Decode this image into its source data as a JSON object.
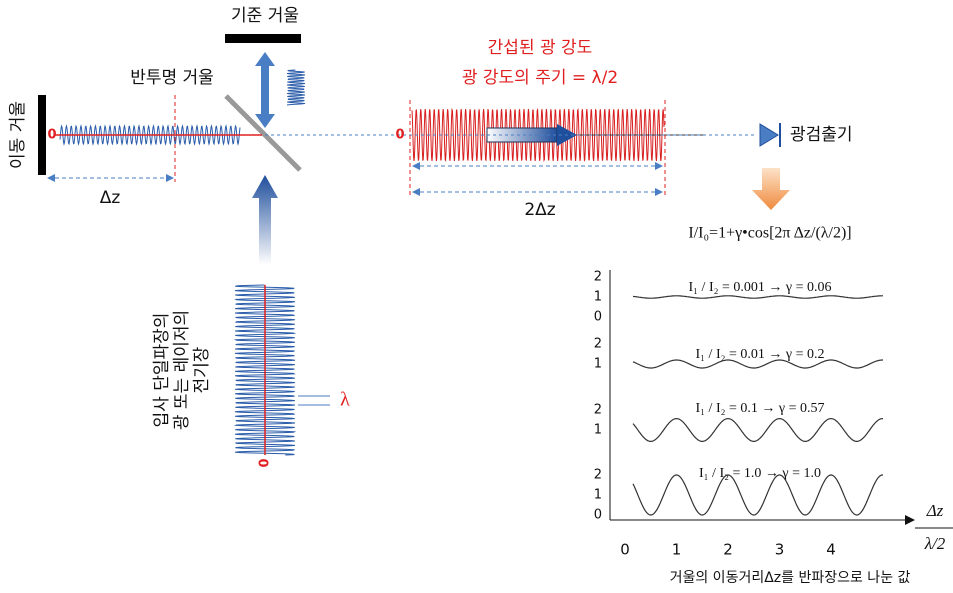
{
  "labels": {
    "reference_mirror": "기준 거울",
    "beam_splitter": "반투명 거울",
    "moving_mirror": "이동 거울",
    "delta_z": "Δz",
    "interference_title": "간섭된 광 강도",
    "period": "광 강도의 주기 = λ/2",
    "origin_left": "0",
    "origin_right": "0",
    "origin_bottom": "0",
    "double_delta_z": "2Δz",
    "detector": "광검출기",
    "formula": "I/I₀=1+γ•cos[2π Δz/(λ/2)]",
    "wavelength": "λ",
    "incident": [
      "입사 단일파장의",
      "광 또는 레이저의",
      "전기장"
    ]
  },
  "plot": {
    "panels": [
      {
        "y_ticks": [
          "2",
          "1",
          "0"
        ],
        "ratio_text": "I₁ / I₂ = 0.001  →  γ = ",
        "gamma": "0.06"
      },
      {
        "y_ticks": [
          "2",
          "1"
        ],
        "ratio_text": "I₁ / I₂  = 0.01  →  γ = ",
        "gamma": "0.2"
      },
      {
        "y_ticks": [
          "2",
          "1"
        ],
        "ratio_text": "I₁ / I₂  = 0.1  →  γ = ",
        "gamma": "0.57"
      },
      {
        "y_ticks": [
          "2",
          "1",
          "0"
        ],
        "ratio_text": "I₁ / I₂  = 1.0  →  γ = ",
        "gamma": "1.0"
      }
    ],
    "x_ticks": [
      "0",
      "1",
      "2",
      "3",
      "4"
    ],
    "x_label_num": "Δz",
    "x_label_den": "λ/2",
    "caption": "거울의 이동거리Δz를 반파장으로 나눈 값"
  }
}
